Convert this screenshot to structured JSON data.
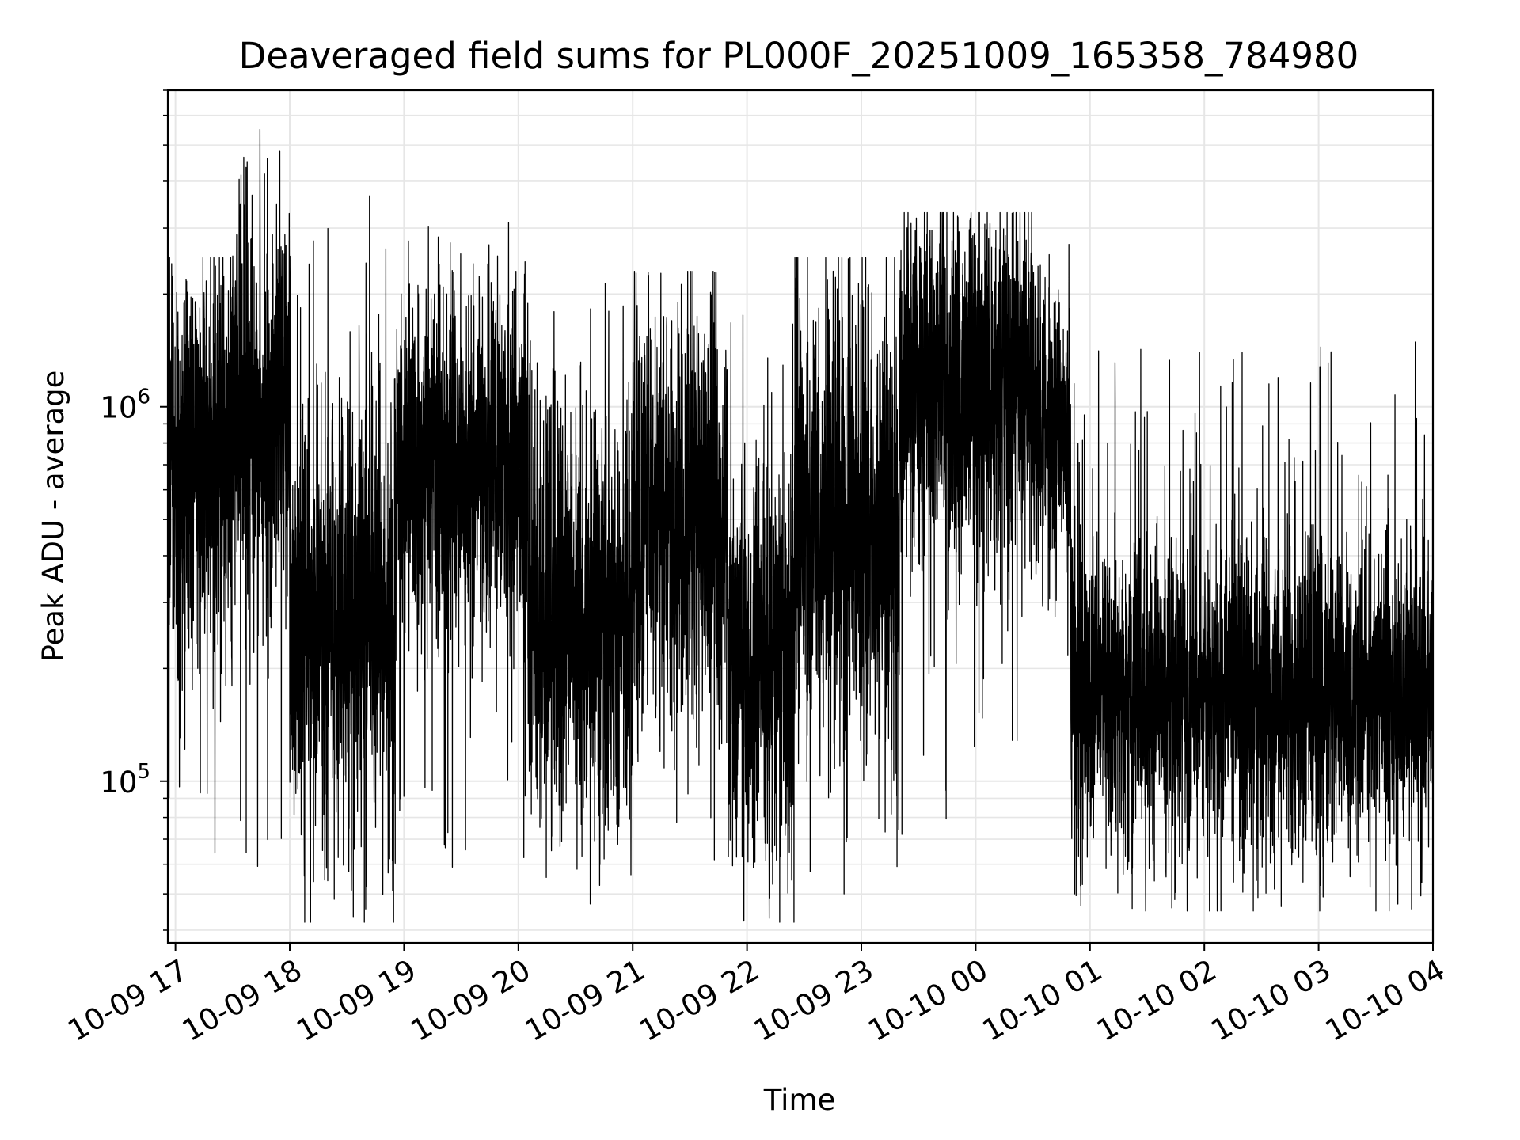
{
  "chart_data": {
    "type": "line",
    "title": "Deaveraged field sums for PL000F_20251009_165358_784980",
    "xlabel": "Time",
    "ylabel": "Peak ADU - average",
    "yscale": "log",
    "grid": true,
    "x_range": [
      "2025-10-09T16:56:00",
      "2025-10-10T04:00:00"
    ],
    "ylim": [
      37000,
      7000000
    ],
    "x_tick_labels": [
      "10-09 17",
      "10-09 18",
      "10-09 19",
      "10-09 20",
      "10-09 21",
      "10-09 22",
      "10-09 23",
      "10-10 00",
      "10-10 01",
      "10-10 02",
      "10-10 03",
      "10-10 04"
    ],
    "y_tick_labels": [
      {
        "base": "10",
        "exp": "6",
        "value": 1000000
      },
      {
        "base": "10",
        "exp": "5",
        "value": 100000
      }
    ],
    "series": [
      {
        "color": "#000000",
        "segments": [
          {
            "x_start": "2025-10-09T16:56:00",
            "x_end": "2025-10-09T17:30:00",
            "median": 700000,
            "spread": 0.28,
            "max": 2500000,
            "min": 60000
          },
          {
            "x_start": "2025-10-09T17:30:00",
            "x_end": "2025-10-09T18:00:00",
            "median": 900000,
            "spread": 0.26,
            "max": 5500000,
            "min": 50000
          },
          {
            "x_start": "2025-10-09T18:00:00",
            "x_end": "2025-10-09T18:55:00",
            "median": 260000,
            "spread": 0.28,
            "max": 3700000,
            "min": 42000
          },
          {
            "x_start": "2025-10-09T18:55:00",
            "x_end": "2025-10-09T20:05:00",
            "median": 700000,
            "spread": 0.22,
            "max": 3100000,
            "min": 55000
          },
          {
            "x_start": "2025-10-09T20:05:00",
            "x_end": "2025-10-09T21:00:00",
            "median": 270000,
            "spread": 0.28,
            "max": 2200000,
            "min": 47000
          },
          {
            "x_start": "2025-10-09T21:00:00",
            "x_end": "2025-10-09T21:50:00",
            "median": 500000,
            "spread": 0.27,
            "max": 2300000,
            "min": 60000
          },
          {
            "x_start": "2025-10-09T21:50:00",
            "x_end": "2025-10-09T22:25:00",
            "median": 200000,
            "spread": 0.25,
            "max": 1800000,
            "min": 42000
          },
          {
            "x_start": "2025-10-09T22:25:00",
            "x_end": "2025-10-09T23:20:00",
            "median": 450000,
            "spread": 0.3,
            "max": 2500000,
            "min": 50000
          },
          {
            "x_start": "2025-10-09T23:20:00",
            "x_end": "2025-10-10T00:30:00",
            "median": 1100000,
            "spread": 0.24,
            "max": 3300000,
            "min": 60000
          },
          {
            "x_start": "2025-10-10T00:30:00",
            "x_end": "2025-10-10T00:50:00",
            "median": 850000,
            "spread": 0.17,
            "max": 2800000,
            "min": 200000
          },
          {
            "x_start": "2025-10-10T00:50:00",
            "x_end": "2025-10-10T04:00:00",
            "median": 175000,
            "spread": 0.2,
            "max": 1500000,
            "min": 45000
          }
        ]
      }
    ]
  }
}
